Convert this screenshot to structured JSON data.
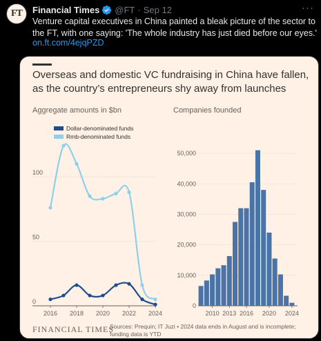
{
  "tweet": {
    "avatar_text": "FT",
    "name": "Financial Times",
    "handle": "@FT",
    "dot": "·",
    "date": "Sep 12",
    "more": "···",
    "text": "Venture capital executives in China painted a bleak picture of the sector to the FT, with one saying: 'The whole industry has just died before our eyes.'",
    "link": "on.ft.com/4ejqPZD"
  },
  "card": {
    "title": "Overseas and domestic VC fundraising in China have fallen, as the country’s entrepreneurs shy away from launches",
    "logo": "FINANCIAL TIMES",
    "source": "Sources: Prequin; IT Juzi • 2024 data ends in August and is incomplete; funding data is YTD"
  },
  "colors": {
    "dollar": "#1e4d8c",
    "rmb": "#8ed0ec",
    "bars": "#4a74a8",
    "card_bg": "#fff1e5",
    "link": "#1d9bf0",
    "verified": "#1d9bf0"
  },
  "chart_data": [
    {
      "type": "line",
      "subtitle": "Aggregate amounts in $bn",
      "x": [
        2016,
        2017,
        2018,
        2019,
        2020,
        2021,
        2022,
        2023,
        2024
      ],
      "series": [
        {
          "name": "Dollar-denominated funds",
          "values": [
            5,
            8,
            16,
            8,
            8,
            16,
            17,
            5,
            1
          ]
        },
        {
          "name": "Rmb-denominated funds",
          "values": [
            76,
            124,
            110,
            85,
            83,
            87,
            88,
            16,
            5
          ]
        }
      ],
      "xticks": [
        "2016",
        "2018",
        "2020",
        "2022",
        "2024"
      ],
      "yticks": [
        0,
        50,
        100
      ],
      "ylim": [
        0,
        130
      ],
      "legend": "top-left"
    },
    {
      "type": "bar",
      "subtitle": "Companies founded",
      "x": [
        2008,
        2009,
        2010,
        2011,
        2012,
        2013,
        2014,
        2015,
        2016,
        2017,
        2018,
        2019,
        2020,
        2021,
        2022,
        2023,
        2024
      ],
      "values": [
        6500,
        8300,
        10300,
        12300,
        13300,
        16300,
        27500,
        32000,
        32000,
        40500,
        51000,
        38000,
        24000,
        15500,
        10300,
        3300,
        1000
      ],
      "xticks": [
        "2010",
        "2013",
        "2016",
        "2020",
        "2024"
      ],
      "yticks": [
        "0",
        "10,000",
        "20,000",
        "30,000",
        "40,000",
        "50,000"
      ],
      "ylim": [
        0,
        55000
      ]
    }
  ]
}
